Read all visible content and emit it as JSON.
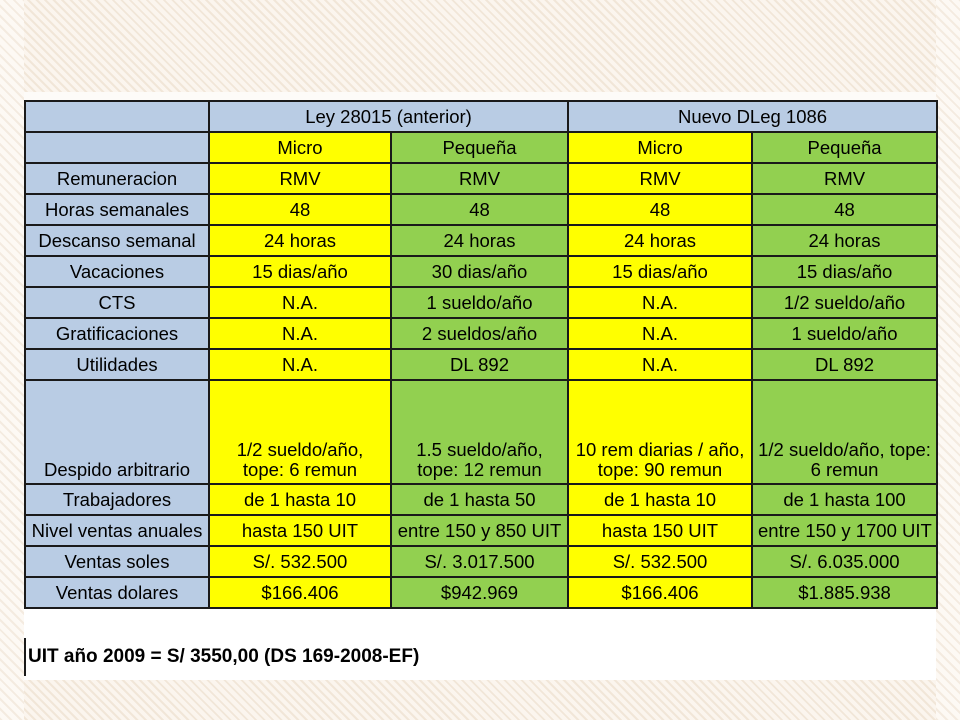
{
  "header_groups": [
    "Ley 28015 (anterior)",
    "Nuevo DLeg 1086"
  ],
  "sub_headers": [
    "Micro",
    "Pequeña",
    "Micro",
    "Pequeña"
  ],
  "rows": [
    {
      "label": "Remuneracion",
      "values": [
        "RMV",
        "RMV",
        "RMV",
        "RMV"
      ]
    },
    {
      "label": "Horas semanales",
      "values": [
        "48",
        "48",
        "48",
        "48"
      ]
    },
    {
      "label": "Descanso semanal",
      "values": [
        "24 horas",
        "24 horas",
        "24 horas",
        "24 horas"
      ]
    },
    {
      "label": "Vacaciones",
      "values": [
        "15 dias/año",
        "30 dias/año",
        "15 dias/año",
        "15 dias/año"
      ]
    },
    {
      "label": "CTS",
      "values": [
        "N.A.",
        "1 sueldo/año",
        "N.A.",
        "1/2 sueldo/año"
      ]
    },
    {
      "label": "Gratificaciones",
      "values": [
        "N.A.",
        "2 sueldos/año",
        "N.A.",
        "1 sueldo/año"
      ]
    },
    {
      "label": "Utilidades",
      "values": [
        "N.A.",
        "DL 892",
        "N.A.",
        "DL 892"
      ]
    },
    {
      "label": "Despido arbitrario",
      "values": [
        [
          "1/2 sueldo/año,",
          "tope: 6 remun"
        ],
        [
          "1.5 sueldo/año,",
          "tope: 12 remun"
        ],
        [
          "10 rem diarias / año,",
          "tope: 90 remun"
        ],
        [
          "1/2 sueldo/año, tope:",
          "6 remun"
        ]
      ]
    },
    {
      "label": "Trabajadores",
      "values": [
        "de 1 hasta 10",
        "de 1 hasta 50",
        "de 1 hasta 10",
        "de 1 hasta 100"
      ]
    },
    {
      "label": "Nivel ventas anuales",
      "values": [
        "hasta 150 UIT",
        "entre 150 y 850 UIT",
        "hasta 150 UIT",
        "entre 150 y 1700 UIT"
      ]
    },
    {
      "label": "Ventas soles",
      "values": [
        "S/. 532.500",
        "S/. 3.017.500",
        "S/. 532.500",
        "S/. 6.035.000"
      ]
    },
    {
      "label": "Ventas dolares",
      "values": [
        "$166.406",
        "$942.969",
        "$166.406",
        "$1.885.938"
      ]
    }
  ],
  "footer": "UIT año 2009 = S/ 3550,00 (DS 169-2008-EF)",
  "colors": {
    "header_blue": "#b9cce4",
    "micro_yellow": "#ffff00",
    "pequena_green": "#92d050"
  }
}
